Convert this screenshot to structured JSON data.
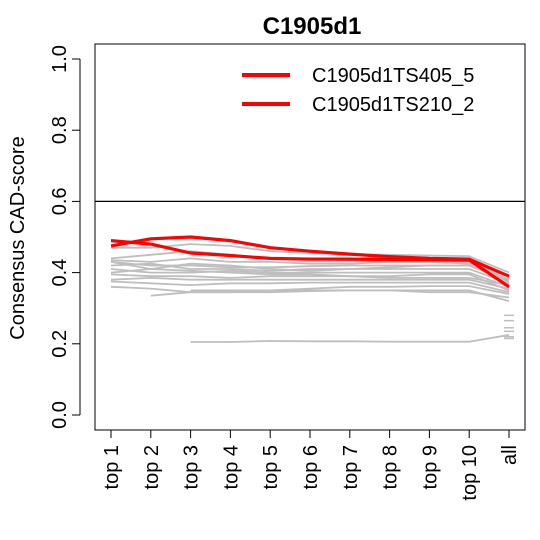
{
  "chart_data": {
    "type": "line",
    "title": "C1905d1",
    "xlabel": "",
    "ylabel": "Consensus CAD-score",
    "categories": [
      "top 1",
      "top 2",
      "top 3",
      "top 4",
      "top 5",
      "top 6",
      "top 7",
      "top 8",
      "top 9",
      "top 10",
      "all"
    ],
    "ylim": [
      0,
      1.0
    ],
    "yticks": [
      "0.0",
      "0.2",
      "0.4",
      "0.6",
      "0.8",
      "1.0"
    ],
    "reference_line": 0.6,
    "grid": false,
    "legend_position": "top-right",
    "highlight_color": "#ff0000",
    "background_color": "#bebebe",
    "series": [
      {
        "name": "C1905d1TS405_5",
        "highlight": true,
        "values": [
          0.49,
          0.48,
          0.455,
          0.448,
          0.44,
          0.438,
          0.438,
          0.437,
          0.436,
          0.435,
          0.36
        ]
      },
      {
        "name": "C1905d1TS210_2",
        "highlight": true,
        "values": [
          0.475,
          0.495,
          0.5,
          0.49,
          0.47,
          0.46,
          0.452,
          0.445,
          0.44,
          0.438,
          0.39
        ]
      },
      {
        "values": [
          0.47,
          0.47,
          0.48,
          0.475,
          0.46,
          0.455,
          0.45,
          0.45,
          0.448,
          0.446,
          0.4
        ]
      },
      {
        "values": [
          0.44,
          0.45,
          0.46,
          0.45,
          0.44,
          0.44,
          0.435,
          0.43,
          0.43,
          0.43,
          0.38
        ]
      },
      {
        "values": [
          0.435,
          0.43,
          0.44,
          0.43,
          0.43,
          0.425,
          0.425,
          0.43,
          0.43,
          0.425,
          0.39
        ]
      },
      {
        "values": [
          0.43,
          0.42,
          0.42,
          0.415,
          0.415,
          0.418,
          0.42,
          0.42,
          0.42,
          0.42,
          0.375
        ]
      },
      {
        "values": [
          0.42,
          0.425,
          0.41,
          0.41,
          0.405,
          0.41,
          0.41,
          0.41,
          0.41,
          0.41,
          0.37
        ]
      },
      {
        "values": [
          0.41,
          0.4,
          0.4,
          0.405,
          0.4,
          0.4,
          0.4,
          0.4,
          0.4,
          0.4,
          0.36
        ]
      },
      {
        "values": [
          0.4,
          0.41,
          0.405,
          0.4,
          0.395,
          0.395,
          0.39,
          0.39,
          0.395,
          0.395,
          0.35
        ]
      },
      {
        "values": [
          0.395,
          0.39,
          0.39,
          0.385,
          0.39,
          0.39,
          0.39,
          0.385,
          0.385,
          0.385,
          0.365
        ]
      },
      {
        "values": [
          0.38,
          0.385,
          0.38,
          0.38,
          0.38,
          0.38,
          0.38,
          0.38,
          0.38,
          0.38,
          0.355
        ]
      },
      {
        "values": [
          0.375,
          0.37,
          0.365,
          0.37,
          0.37,
          0.372,
          0.372,
          0.372,
          0.372,
          0.372,
          0.345
        ]
      },
      {
        "values": [
          0.36,
          0.355,
          0.345,
          0.345,
          0.35,
          0.355,
          0.36,
          0.36,
          0.362,
          0.362,
          0.34
        ]
      },
      {
        "values": [
          null,
          0.335,
          0.345,
          0.345,
          0.345,
          0.348,
          0.35,
          0.35,
          0.35,
          0.35,
          0.32
        ]
      },
      {
        "values": [
          null,
          null,
          0.35,
          0.35,
          0.35,
          0.35,
          0.35,
          0.35,
          0.345,
          0.345,
          0.33
        ]
      },
      {
        "values": [
          0.43,
          0.41,
          0.425,
          0.42,
          0.41,
          0.405,
          0.41,
          0.415,
          0.42,
          0.42,
          0.38
        ]
      },
      {
        "values": [
          null,
          null,
          0.205,
          0.205,
          0.208,
          0.207,
          0.207,
          0.206,
          0.206,
          0.206,
          0.225
        ]
      }
    ],
    "all_points": [
      0.28,
      0.265,
      0.245,
      0.235,
      0.22,
      0.215
    ]
  }
}
